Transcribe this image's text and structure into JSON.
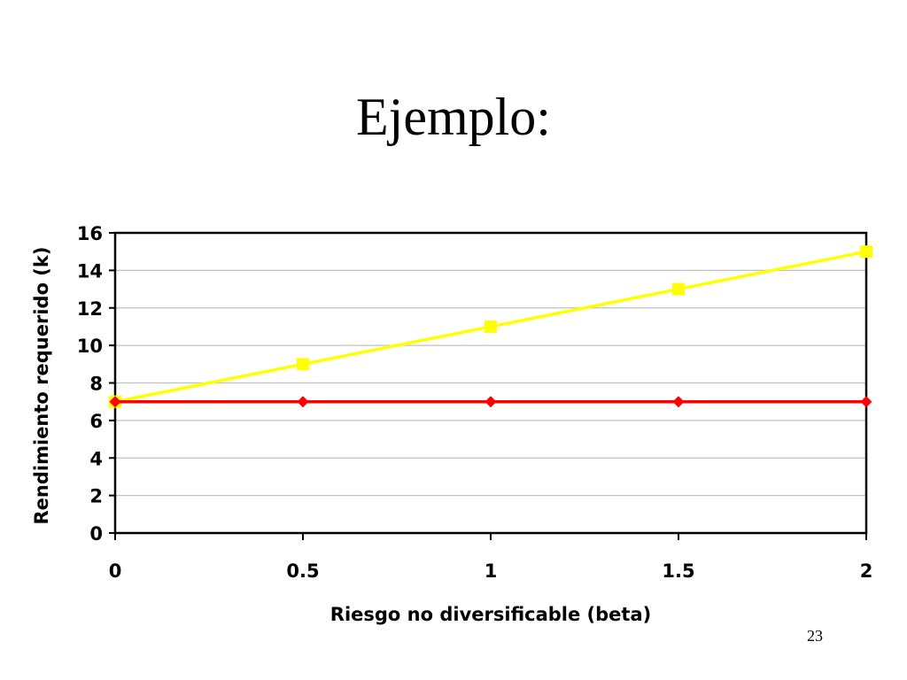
{
  "slide": {
    "title": "Ejemplo:",
    "page_number": "23"
  },
  "chart_data": {
    "type": "line",
    "title": "",
    "xlabel": "Riesgo no diversificable (beta)",
    "ylabel": "Rendimiento requerido (k)",
    "xlim": [
      0,
      2
    ],
    "ylim": [
      0,
      16
    ],
    "xticks": [
      0,
      0.5,
      1,
      1.5,
      2
    ],
    "xtick_labels": [
      "0",
      "0.5",
      "1",
      "1.5",
      "2"
    ],
    "yticks": [
      0,
      2,
      4,
      6,
      8,
      10,
      12,
      14,
      16
    ],
    "ytick_labels": [
      "0",
      "2",
      "4",
      "6",
      "8",
      "10",
      "12",
      "14",
      "16"
    ],
    "grid": "horizontal",
    "legend": "none",
    "x": [
      0,
      0.5,
      1,
      1.5,
      2
    ],
    "series": [
      {
        "values": [
          7,
          9,
          11,
          13,
          15
        ],
        "color": "#ffff00",
        "marker": "square"
      },
      {
        "values": [
          7,
          7,
          7,
          7,
          7
        ],
        "color": "#ff0000",
        "marker": "diamond"
      }
    ]
  }
}
